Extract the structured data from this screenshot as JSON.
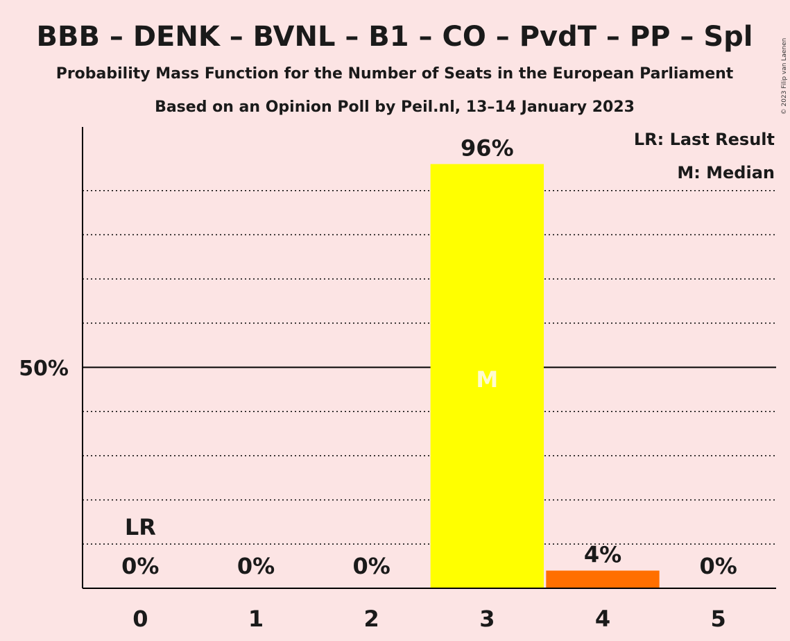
{
  "copyright": "© 2023 Filip van Laenen",
  "chart_data": {
    "type": "bar",
    "title": "BBB – DENK – BVNL – B1 – CO – PvdT – PP – Spl",
    "subtitle": "Probability Mass Function for the Number of Seats in the European Parliament",
    "subtitle2": "Based on an Opinion Poll by Peil.nl, 13–14 January 2023",
    "categories": [
      "0",
      "1",
      "2",
      "3",
      "4",
      "5"
    ],
    "values": [
      0,
      0,
      0,
      96,
      4,
      0
    ],
    "value_labels": [
      "0%",
      "0%",
      "0%",
      "96%",
      "4%",
      "0%"
    ],
    "bar_colors": [
      "#ffff00",
      "#ffff00",
      "#ffff00",
      "#ffff00",
      "#ff6f00",
      "#ffff00"
    ],
    "ylim": [
      0,
      105
    ],
    "gridlines": [
      10,
      20,
      30,
      40,
      60,
      70,
      80,
      90
    ],
    "major_gridline": 50,
    "y_tick_label": "50%",
    "last_result_category": "0",
    "last_result_marker": "LR",
    "median_category": "3",
    "median_marker": "M",
    "legend": [
      "LR: Last Result",
      "M: Median"
    ],
    "legend_position": "top-right"
  }
}
